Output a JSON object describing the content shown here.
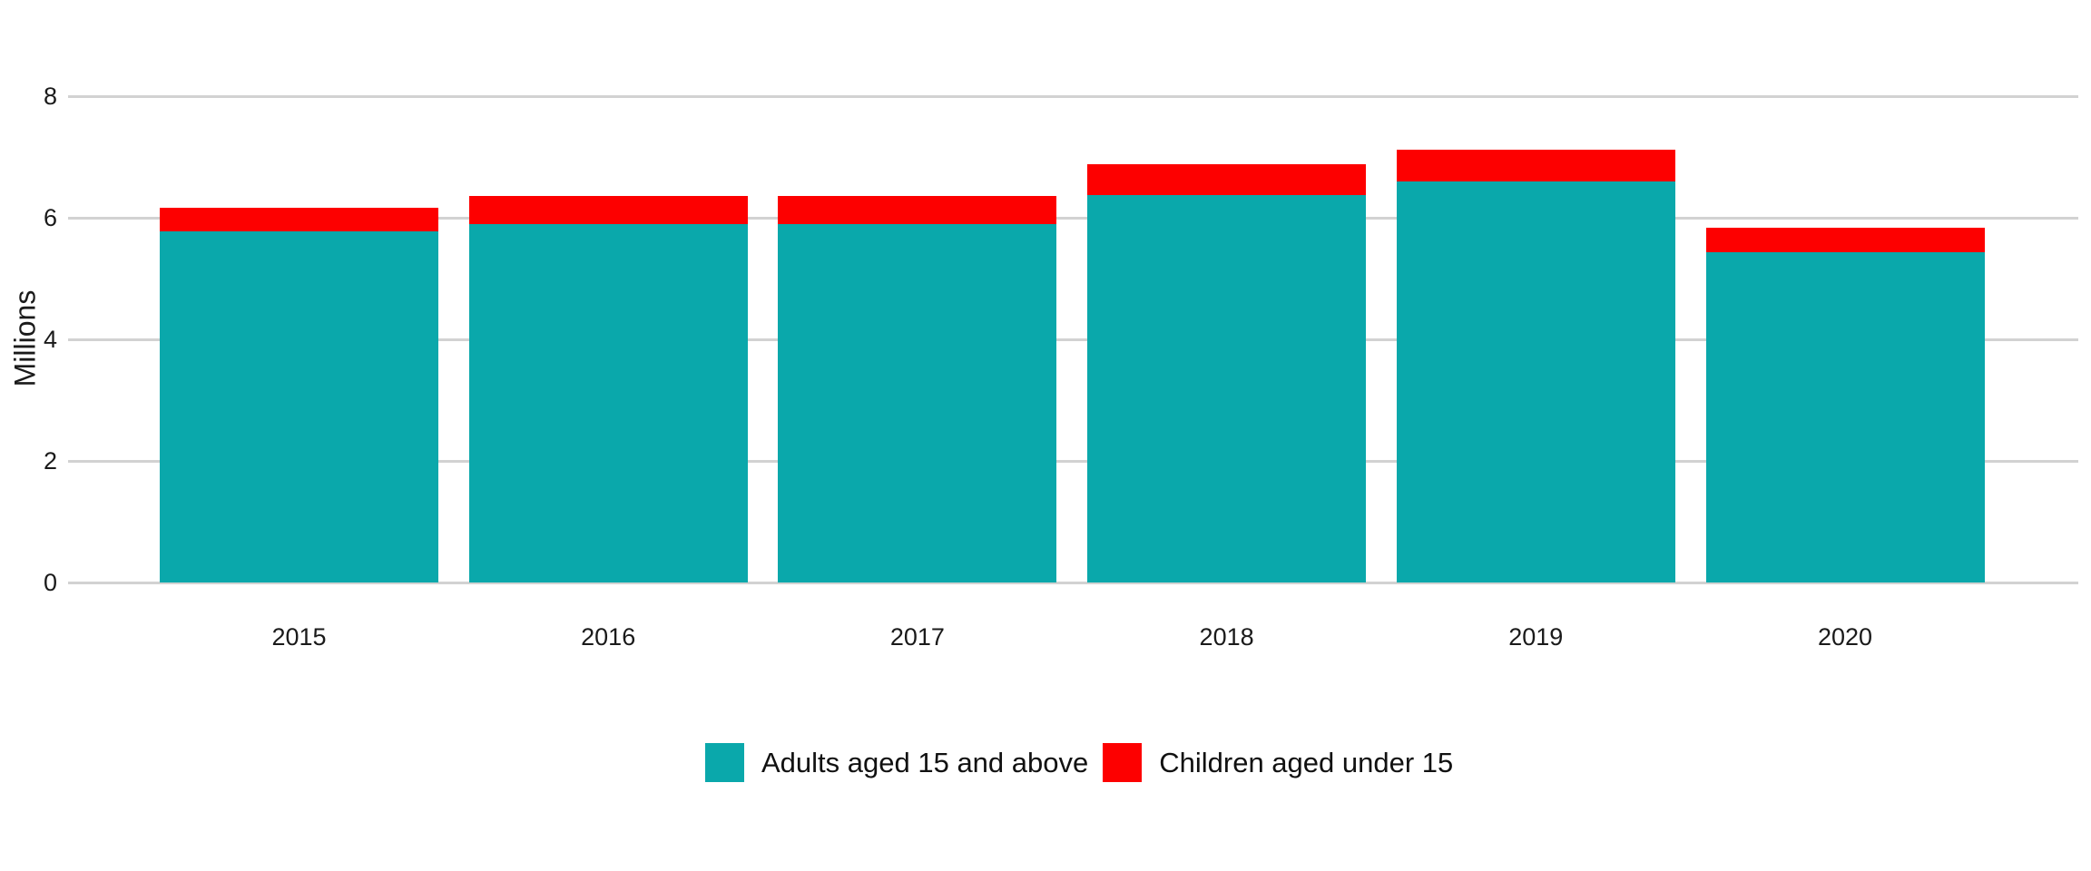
{
  "chart_data": {
    "type": "bar",
    "stacked": true,
    "title": "",
    "categories": [
      "2015",
      "2016",
      "2017",
      "2018",
      "2019",
      "2020"
    ],
    "series": [
      {
        "name": "Adults aged 15 and above",
        "color": "#0aa8ab",
        "values": [
          5.78,
          5.9,
          5.9,
          6.38,
          6.6,
          5.44
        ]
      },
      {
        "name": "Children aged under 15",
        "color": "#fd0000",
        "values": [
          0.39,
          0.46,
          0.46,
          0.5,
          0.52,
          0.4
        ]
      }
    ],
    "totals": [
      6.17,
      6.36,
      6.36,
      6.88,
      7.12,
      5.84
    ],
    "xlabel": "",
    "ylabel": "Millions",
    "ylim": [
      0,
      8
    ],
    "yticks": [
      0,
      2,
      4,
      6,
      8
    ],
    "ytick_labels": [
      "0",
      "2",
      "4",
      "6",
      "8"
    ],
    "grid": true,
    "legend_position": "bottom",
    "colors": {
      "background": "#ffffff",
      "gridline": "#d2d2d2",
      "text": "#111111",
      "adults": "#0aa8ab",
      "children": "#fd0000"
    }
  }
}
